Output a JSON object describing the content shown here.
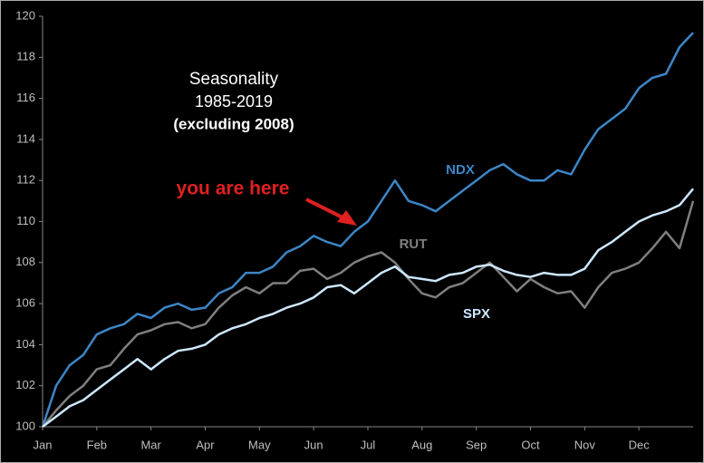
{
  "chart_data": {
    "type": "line",
    "title": [
      "Seasonality",
      "1985-2019",
      "(excluding 2008)"
    ],
    "annotation": "you are here",
    "x": [
      0,
      0.25,
      0.5,
      0.75,
      1,
      1.25,
      1.5,
      1.75,
      2,
      2.25,
      2.5,
      2.75,
      3,
      3.25,
      3.5,
      3.75,
      4,
      4.25,
      4.5,
      4.75,
      5,
      5.25,
      5.5,
      5.75,
      6,
      6.25,
      6.5,
      6.75,
      7,
      7.25,
      7.5,
      7.75,
      8,
      8.25,
      8.5,
      8.75,
      9,
      9.25,
      9.5,
      9.75,
      10,
      10.25,
      10.5,
      10.75,
      11,
      11.25,
      11.5,
      11.75,
      12
    ],
    "xlim": [
      0,
      12
    ],
    "xticks": [
      {
        "value": 0,
        "label": "Jan"
      },
      {
        "value": 1,
        "label": "Feb"
      },
      {
        "value": 2,
        "label": "Mar"
      },
      {
        "value": 3,
        "label": "Apr"
      },
      {
        "value": 4,
        "label": "May"
      },
      {
        "value": 5,
        "label": "Jun"
      },
      {
        "value": 6,
        "label": "Jul"
      },
      {
        "value": 7,
        "label": "Aug"
      },
      {
        "value": 8,
        "label": "Sep"
      },
      {
        "value": 9,
        "label": "Oct"
      },
      {
        "value": 10,
        "label": "Nov"
      },
      {
        "value": 11,
        "label": "Dec"
      }
    ],
    "ylim": [
      100,
      120
    ],
    "yticks": [
      100,
      102,
      104,
      106,
      108,
      110,
      112,
      114,
      116,
      118,
      120
    ],
    "series": [
      {
        "name": "NDX",
        "color": "#3d86c6",
        "values": [
          100,
          102,
          103,
          103.5,
          104.5,
          104.8,
          105,
          105.5,
          105.3,
          105.8,
          106,
          105.7,
          105.8,
          106.5,
          106.8,
          107.5,
          107.5,
          107.8,
          108.5,
          108.8,
          109.3,
          109,
          108.8,
          109.5,
          110,
          111,
          112,
          111,
          110.8,
          110.5,
          111,
          111.5,
          112,
          112.5,
          112.8,
          112.3,
          112,
          112,
          112.5,
          112.3,
          113.5,
          114.5,
          115,
          115.5,
          116.5,
          117,
          117.2,
          118.5,
          119.2
        ]
      },
      {
        "name": "RUT",
        "color": "#7f7f7f",
        "values": [
          100,
          100.8,
          101.5,
          102,
          102.8,
          103,
          103.8,
          104.5,
          104.7,
          105,
          105.1,
          104.8,
          105,
          105.8,
          106.4,
          106.8,
          106.5,
          107,
          107,
          107.6,
          107.7,
          107.2,
          107.5,
          108,
          108.3,
          108.5,
          108,
          107.2,
          106.5,
          106.3,
          106.8,
          107,
          107.5,
          108,
          107.3,
          106.6,
          107.2,
          106.8,
          106.5,
          106.6,
          105.8,
          106.8,
          107.5,
          107.7,
          108,
          108.7,
          109.5,
          108.7,
          111
        ]
      },
      {
        "name": "SPX",
        "color": "#cde8ff",
        "values": [
          100,
          100.5,
          101,
          101.3,
          101.8,
          102.3,
          102.8,
          103.3,
          102.8,
          103.3,
          103.7,
          103.8,
          104,
          104.5,
          104.8,
          105,
          105.3,
          105.5,
          105.8,
          106,
          106.3,
          106.8,
          106.9,
          106.5,
          107,
          107.5,
          107.8,
          107.3,
          107.2,
          107.1,
          107.4,
          107.5,
          107.8,
          107.9,
          107.6,
          107.4,
          107.3,
          107.5,
          107.4,
          107.4,
          107.7,
          108.6,
          109,
          109.5,
          110,
          110.3,
          110.5,
          110.8,
          111.6
        ]
      }
    ]
  }
}
